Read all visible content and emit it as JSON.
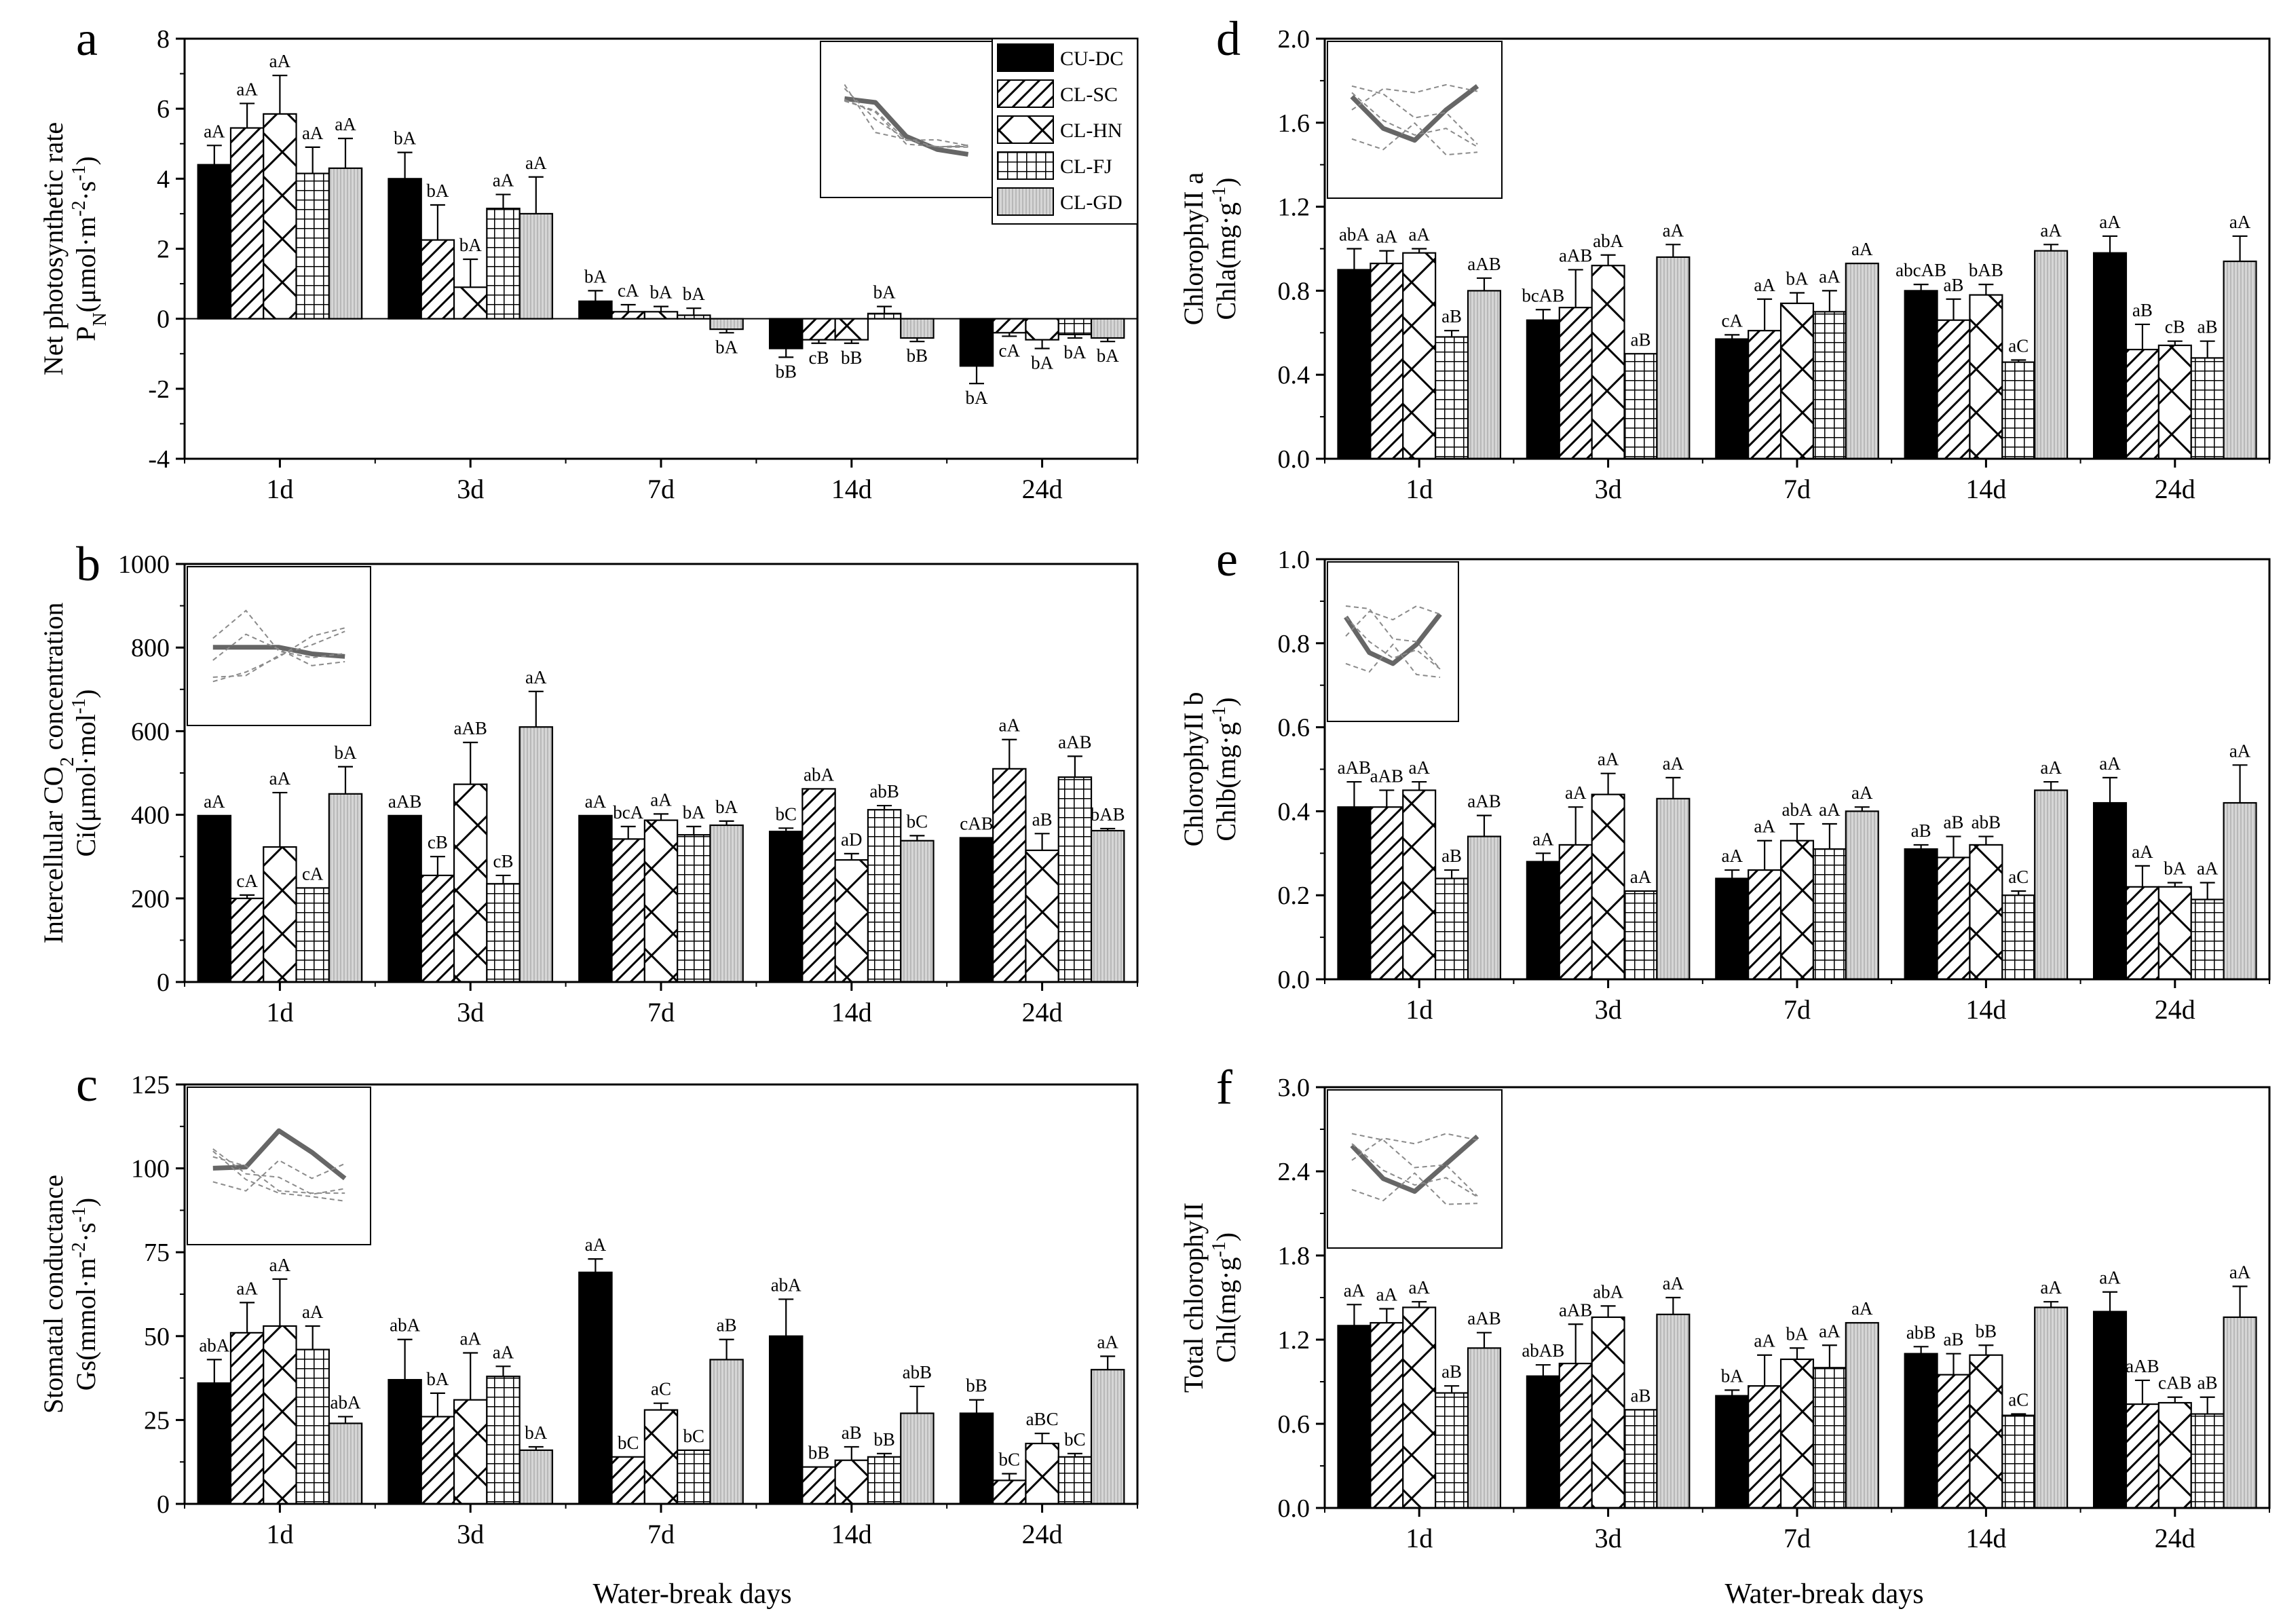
{
  "colors": {
    "black": "#000000",
    "gray": "#d6d6d6",
    "inset_main": "#666666",
    "inset_other": "#8a8a8a"
  },
  "legend": [
    "CU-DC",
    "CL-SC",
    "CL-HN",
    "CL-FJ",
    "CL-GD"
  ],
  "x_title": "Water-break days",
  "chart_data": [
    {
      "id": "a",
      "letter": "a",
      "type": "bar",
      "ylabel_lines": [
        "Net photosynthetic rate",
        "PN(μmol·m-2·s-1)"
      ],
      "categories": [
        "1d",
        "3d",
        "7d",
        "14d",
        "24d"
      ],
      "ylim": [
        -4,
        8
      ],
      "yticks": [
        -4,
        -2,
        0,
        2,
        4,
        6,
        8
      ],
      "series": [
        {
          "name": "CU-DC",
          "values": [
            4.4,
            4.0,
            0.5,
            -0.85,
            -1.35
          ],
          "errors": [
            0.55,
            0.75,
            0.3,
            0.25,
            0.5
          ],
          "labels": [
            "aA",
            "bA",
            "bA",
            "bB",
            "bA"
          ]
        },
        {
          "name": "CL-SC",
          "values": [
            5.45,
            2.25,
            0.2,
            -0.6,
            -0.4
          ],
          "errors": [
            0.7,
            1.0,
            0.2,
            0.1,
            0.1
          ],
          "labels": [
            "aA",
            "bA",
            "cA",
            "cB",
            "cA"
          ]
        },
        {
          "name": "CL-HN",
          "values": [
            5.85,
            0.9,
            0.2,
            -0.6,
            -0.6
          ],
          "errors": [
            1.1,
            0.8,
            0.15,
            0.1,
            0.25
          ],
          "labels": [
            "aA",
            "bA",
            "bA",
            "bB",
            "bA"
          ]
        },
        {
          "name": "CL-FJ",
          "values": [
            4.15,
            3.15,
            0.1,
            0.15,
            -0.45
          ],
          "errors": [
            0.75,
            0.4,
            0.2,
            0.2,
            0.1
          ],
          "labels": [
            "aA",
            "aA",
            "bA",
            "bA",
            "bA"
          ]
        },
        {
          "name": "CL-GD",
          "values": [
            4.3,
            3.0,
            -0.3,
            -0.55,
            -0.55
          ],
          "errors": [
            0.85,
            1.05,
            0.1,
            0.1,
            0.1
          ],
          "labels": [
            "aA",
            "aA",
            "bA",
            "bB",
            "bA"
          ]
        }
      ]
    },
    {
      "id": "b",
      "letter": "b",
      "type": "bar",
      "ylabel_lines": [
        "Intercellular CO2 concentration",
        "Ci(μmol·mol-1)"
      ],
      "categories": [
        "1d",
        "3d",
        "7d",
        "14d",
        "24d"
      ],
      "ylim": [
        0,
        1000
      ],
      "yticks": [
        0,
        200,
        400,
        600,
        800,
        1000
      ],
      "series": [
        {
          "name": "CU-DC",
          "values": [
            398,
            398,
            398,
            360,
            345
          ],
          "errors": [
            0,
            0,
            0,
            8,
            0
          ],
          "labels": [
            "aA",
            "aAB",
            "aA",
            "bC",
            "cAB"
          ]
        },
        {
          "name": "CL-SC",
          "values": [
            200,
            255,
            342,
            462,
            510
          ],
          "errors": [
            8,
            45,
            30,
            0,
            70
          ],
          "labels": [
            "cA",
            "cB",
            "bcA",
            "abA",
            "aA"
          ]
        },
        {
          "name": "CL-HN",
          "values": [
            323,
            473,
            387,
            292,
            315
          ],
          "errors": [
            130,
            100,
            15,
            15,
            40
          ],
          "labels": [
            "aA",
            "aAB",
            "aA",
            "aD",
            "aB"
          ]
        },
        {
          "name": "CL-FJ",
          "values": [
            225,
            235,
            352,
            412,
            490
          ],
          "errors": [
            0,
            20,
            20,
            10,
            50
          ],
          "labels": [
            "cA",
            "cB",
            "bA",
            "abB",
            "aAB"
          ]
        },
        {
          "name": "CL-GD",
          "values": [
            450,
            610,
            375,
            338,
            362
          ],
          "errors": [
            65,
            85,
            10,
            12,
            5
          ],
          "labels": [
            "bA",
            "aA",
            "bA",
            "bC",
            "bAB"
          ]
        }
      ]
    },
    {
      "id": "c",
      "letter": "c",
      "type": "bar",
      "ylabel_lines": [
        "Stomatal conductance",
        "Gs(mmol·m-2·s-1)"
      ],
      "categories": [
        "1d",
        "3d",
        "7d",
        "14d",
        "24d"
      ],
      "ylim": [
        0,
        125
      ],
      "yticks": [
        0,
        25,
        50,
        75,
        100,
        125
      ],
      "series": [
        {
          "name": "CU-DC",
          "values": [
            36,
            37,
            69,
            50,
            27
          ],
          "errors": [
            7,
            12,
            4,
            11,
            4
          ],
          "labels": [
            "abA",
            "abA",
            "aA",
            "abA",
            "bB"
          ]
        },
        {
          "name": "CL-SC",
          "values": [
            51,
            26,
            14,
            11,
            7
          ],
          "errors": [
            9,
            7,
            0,
            0,
            2
          ],
          "labels": [
            "aA",
            "bA",
            "bC",
            "bB",
            "bC"
          ]
        },
        {
          "name": "CL-HN",
          "values": [
            53,
            31,
            28,
            13,
            18
          ],
          "errors": [
            14,
            14,
            2,
            4,
            3
          ],
          "labels": [
            "aA",
            "aA",
            "aC",
            "aB",
            "aBC"
          ]
        },
        {
          "name": "CL-FJ",
          "values": [
            46,
            38,
            16,
            14,
            14
          ],
          "errors": [
            7,
            3,
            0,
            1,
            1
          ],
          "labels": [
            "aA",
            "aA",
            "bC",
            "bB",
            "bC"
          ]
        },
        {
          "name": "CL-GD",
          "values": [
            24,
            16,
            43,
            27,
            40
          ],
          "errors": [
            2,
            1,
            6,
            8,
            4
          ],
          "labels": [
            "abA",
            "bA",
            "aB",
            "abB",
            "aA"
          ]
        }
      ]
    },
    {
      "id": "d",
      "letter": "d",
      "type": "bar",
      "ylabel_lines": [
        "ChlorophyII a",
        "Chla(mg·g-1)"
      ],
      "categories": [
        "1d",
        "3d",
        "7d",
        "14d",
        "24d"
      ],
      "ylim": [
        0,
        2.0
      ],
      "yticks": [
        "0.0",
        "0.4",
        "0.8",
        "1.2",
        "1.6",
        "2.0"
      ],
      "series": [
        {
          "name": "CU-DC",
          "values": [
            0.9,
            0.66,
            0.57,
            0.8,
            0.98
          ],
          "errors": [
            0.1,
            0.05,
            0.02,
            0.03,
            0.08
          ],
          "labels": [
            "abA",
            "bcAB",
            "cA",
            "abcAB",
            "aA"
          ]
        },
        {
          "name": "CL-SC",
          "values": [
            0.93,
            0.72,
            0.61,
            0.66,
            0.52
          ],
          "errors": [
            0.06,
            0.18,
            0.15,
            0.1,
            0.12
          ],
          "labels": [
            "aA",
            "aAB",
            "aA",
            "aB",
            "aB"
          ]
        },
        {
          "name": "CL-HN",
          "values": [
            0.98,
            0.92,
            0.74,
            0.78,
            0.54
          ],
          "errors": [
            0.02,
            0.05,
            0.05,
            0.05,
            0.02
          ],
          "labels": [
            "aA",
            "abA",
            "bA",
            "bAB",
            "cB"
          ]
        },
        {
          "name": "CL-FJ",
          "values": [
            0.58,
            0.5,
            0.7,
            0.46,
            0.48
          ],
          "errors": [
            0.03,
            0.0,
            0.1,
            0.01,
            0.08
          ],
          "labels": [
            "aB",
            "aB",
            "aA",
            "aC",
            "aB"
          ]
        },
        {
          "name": "CL-GD",
          "values": [
            0.8,
            0.96,
            0.93,
            0.99,
            0.94
          ],
          "errors": [
            0.06,
            0.06,
            0.0,
            0.03,
            0.12
          ],
          "labels": [
            "aAB",
            "aA",
            "aA",
            "aA",
            "aA"
          ]
        }
      ]
    },
    {
      "id": "e",
      "letter": "e",
      "type": "bar",
      "ylabel_lines": [
        "ChlorophyII b",
        "Chlb(mg·g-1)"
      ],
      "categories": [
        "1d",
        "3d",
        "7d",
        "14d",
        "24d"
      ],
      "ylim": [
        0,
        1.0
      ],
      "yticks": [
        "0.0",
        "0.2",
        "0.4",
        "0.6",
        "0.8",
        "1.0"
      ],
      "series": [
        {
          "name": "CU-DC",
          "values": [
            0.41,
            0.28,
            0.24,
            0.31,
            0.42
          ],
          "errors": [
            0.06,
            0.02,
            0.02,
            0.01,
            0.06
          ],
          "labels": [
            "aAB",
            "aA",
            "aA",
            "aB",
            "aA"
          ]
        },
        {
          "name": "CL-SC",
          "values": [
            0.41,
            0.32,
            0.26,
            0.29,
            0.22
          ],
          "errors": [
            0.04,
            0.09,
            0.07,
            0.05,
            0.05
          ],
          "labels": [
            "aAB",
            "aA",
            "aA",
            "aB",
            "aA"
          ]
        },
        {
          "name": "CL-HN",
          "values": [
            0.45,
            0.44,
            0.33,
            0.32,
            0.22
          ],
          "errors": [
            0.02,
            0.05,
            0.04,
            0.02,
            0.01
          ],
          "labels": [
            "aA",
            "aA",
            "abA",
            "abB",
            "bA"
          ]
        },
        {
          "name": "CL-FJ",
          "values": [
            0.24,
            0.21,
            0.31,
            0.2,
            0.19
          ],
          "errors": [
            0.02,
            0.0,
            0.06,
            0.01,
            0.04
          ],
          "labels": [
            "aB",
            "aA",
            "aA",
            "aC",
            "aA"
          ]
        },
        {
          "name": "CL-GD",
          "values": [
            0.34,
            0.43,
            0.4,
            0.45,
            0.42
          ],
          "errors": [
            0.05,
            0.05,
            0.01,
            0.02,
            0.09
          ],
          "labels": [
            "aAB",
            "aA",
            "aA",
            "aA",
            "aA"
          ]
        }
      ]
    },
    {
      "id": "f",
      "letter": "f",
      "type": "bar",
      "ylabel_lines": [
        "Total chlorophyII",
        "Chl(mg·g-1)"
      ],
      "categories": [
        "1d",
        "3d",
        "7d",
        "14d",
        "24d"
      ],
      "ylim": [
        0,
        3.0
      ],
      "yticks": [
        "0.0",
        "0.6",
        "1.2",
        "1.8",
        "2.4",
        "3.0"
      ],
      "series": [
        {
          "name": "CU-DC",
          "values": [
            1.3,
            0.94,
            0.8,
            1.1,
            1.4
          ],
          "errors": [
            0.15,
            0.08,
            0.04,
            0.05,
            0.14
          ],
          "labels": [
            "aA",
            "abAB",
            "bA",
            "abB",
            "aA"
          ]
        },
        {
          "name": "CL-SC",
          "values": [
            1.32,
            1.03,
            0.87,
            0.95,
            0.74
          ],
          "errors": [
            0.1,
            0.28,
            0.22,
            0.15,
            0.17
          ],
          "labels": [
            "aA",
            "aAB",
            "aA",
            "aB",
            "aAB"
          ]
        },
        {
          "name": "CL-HN",
          "values": [
            1.43,
            1.36,
            1.06,
            1.09,
            0.75
          ],
          "errors": [
            0.04,
            0.08,
            0.08,
            0.07,
            0.04
          ],
          "labels": [
            "aA",
            "abA",
            "bA",
            "bB",
            "cAB"
          ]
        },
        {
          "name": "CL-FJ",
          "values": [
            0.82,
            0.7,
            1.0,
            0.66,
            0.67
          ],
          "errors": [
            0.05,
            0.0,
            0.16,
            0.01,
            0.12
          ],
          "labels": [
            "aB",
            "aB",
            "aA",
            "aC",
            "aB"
          ]
        },
        {
          "name": "CL-GD",
          "values": [
            1.14,
            1.38,
            1.32,
            1.43,
            1.36
          ],
          "errors": [
            0.11,
            0.12,
            0.0,
            0.04,
            0.22
          ],
          "labels": [
            "aAB",
            "aA",
            "aA",
            "aA",
            "aA"
          ]
        }
      ]
    }
  ]
}
